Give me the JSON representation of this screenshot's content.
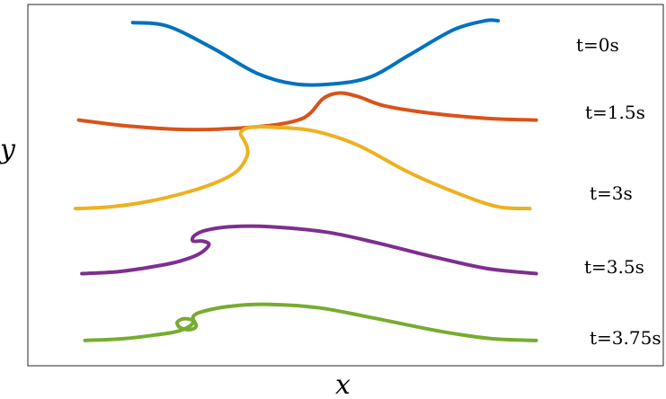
{
  "chart_data": {
    "type": "line",
    "title": "",
    "xlabel": "x",
    "ylabel": "y",
    "grid": false,
    "legend": "none",
    "series": [
      {
        "label": "t=0s",
        "color": "#0072BD",
        "points": [
          [
            0.165,
            0.95
          ],
          [
            0.22,
            0.94
          ],
          [
            0.29,
            0.88
          ],
          [
            0.36,
            0.81
          ],
          [
            0.42,
            0.78
          ],
          [
            0.48,
            0.78
          ],
          [
            0.54,
            0.8
          ],
          [
            0.6,
            0.86
          ],
          [
            0.67,
            0.93
          ],
          [
            0.72,
            0.955
          ],
          [
            0.74,
            0.955
          ]
        ]
      },
      {
        "label": "t=1.5s",
        "color": "#D95319",
        "points": [
          [
            0.08,
            0.68
          ],
          [
            0.15,
            0.665
          ],
          [
            0.23,
            0.655
          ],
          [
            0.3,
            0.655
          ],
          [
            0.38,
            0.665
          ],
          [
            0.425,
            0.68
          ],
          [
            0.445,
            0.7
          ],
          [
            0.465,
            0.74
          ],
          [
            0.49,
            0.755
          ],
          [
            0.52,
            0.745
          ],
          [
            0.56,
            0.72
          ],
          [
            0.63,
            0.7
          ],
          [
            0.72,
            0.685
          ],
          [
            0.8,
            0.68
          ]
        ]
      },
      {
        "label": "t=3s",
        "color": "#EDB120",
        "points": [
          [
            0.075,
            0.435
          ],
          [
            0.13,
            0.44
          ],
          [
            0.19,
            0.455
          ],
          [
            0.25,
            0.48
          ],
          [
            0.3,
            0.51
          ],
          [
            0.33,
            0.54
          ],
          [
            0.345,
            0.58
          ],
          [
            0.345,
            0.605
          ],
          [
            0.34,
            0.625
          ],
          [
            0.335,
            0.645
          ],
          [
            0.35,
            0.66
          ],
          [
            0.39,
            0.66
          ],
          [
            0.45,
            0.65
          ],
          [
            0.52,
            0.61
          ],
          [
            0.6,
            0.535
          ],
          [
            0.68,
            0.475
          ],
          [
            0.74,
            0.44
          ],
          [
            0.79,
            0.435
          ]
        ]
      },
      {
        "label": "t=3.5s",
        "color": "#7E2F8E",
        "points": [
          [
            0.085,
            0.255
          ],
          [
            0.14,
            0.26
          ],
          [
            0.2,
            0.275
          ],
          [
            0.24,
            0.29
          ],
          [
            0.27,
            0.31
          ],
          [
            0.285,
            0.335
          ],
          [
            0.275,
            0.345
          ],
          [
            0.26,
            0.345
          ],
          [
            0.262,
            0.36
          ],
          [
            0.28,
            0.375
          ],
          [
            0.32,
            0.385
          ],
          [
            0.38,
            0.385
          ],
          [
            0.47,
            0.37
          ],
          [
            0.55,
            0.34
          ],
          [
            0.63,
            0.305
          ],
          [
            0.72,
            0.27
          ],
          [
            0.8,
            0.255
          ]
        ]
      },
      {
        "label": "t=3.75s",
        "color": "#77AC30",
        "points": [
          [
            0.09,
            0.07
          ],
          [
            0.15,
            0.075
          ],
          [
            0.2,
            0.085
          ],
          [
            0.235,
            0.095
          ],
          [
            0.255,
            0.11
          ],
          [
            0.26,
            0.125
          ],
          [
            0.245,
            0.13
          ],
          [
            0.235,
            0.12
          ],
          [
            0.24,
            0.105
          ],
          [
            0.255,
            0.1
          ],
          [
            0.265,
            0.11
          ],
          [
            0.26,
            0.135
          ],
          [
            0.275,
            0.15
          ],
          [
            0.32,
            0.165
          ],
          [
            0.38,
            0.17
          ],
          [
            0.46,
            0.16
          ],
          [
            0.55,
            0.13
          ],
          [
            0.65,
            0.095
          ],
          [
            0.73,
            0.075
          ],
          [
            0.8,
            0.07
          ]
        ]
      }
    ]
  }
}
